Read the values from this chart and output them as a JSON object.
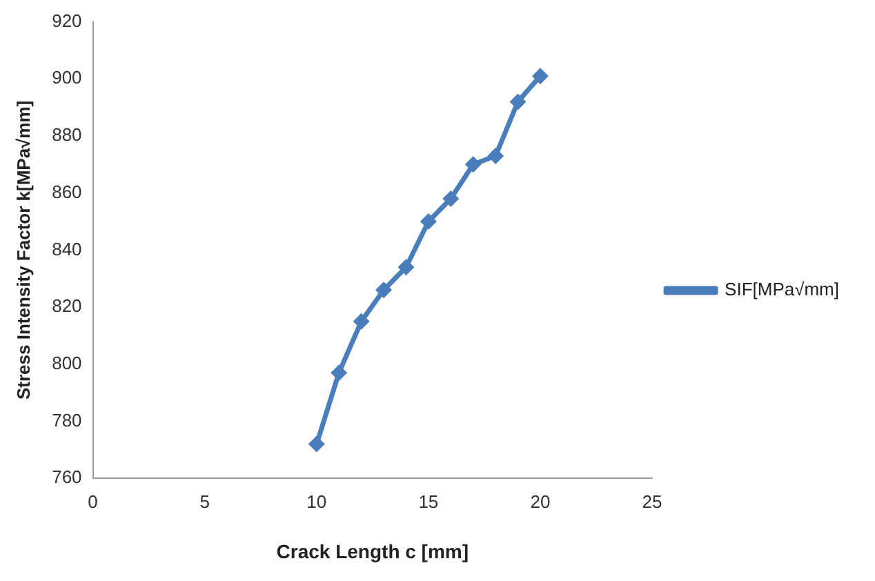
{
  "chart_data": {
    "type": "line",
    "xlabel": "Crack Length c [mm]",
    "ylabel": "Stress Intensity Factor k[MPa√mm]",
    "x": [
      10,
      11,
      12,
      13,
      14,
      15,
      16,
      17,
      18,
      19,
      20
    ],
    "series": [
      {
        "name": "SIF[MPa√mm]",
        "color": "#4a7ebb",
        "values": [
          772,
          797,
          815,
          826,
          834,
          850,
          858,
          870,
          873,
          892,
          901
        ]
      }
    ],
    "xlim": [
      0,
      25
    ],
    "xticks": [
      0,
      5,
      10,
      15,
      20,
      25
    ],
    "ylim": [
      760,
      920
    ],
    "yticks": [
      760,
      780,
      800,
      820,
      840,
      860,
      880,
      900,
      920
    ],
    "grid": false,
    "legend": "right",
    "marker": "diamond",
    "line_style": "solid"
  }
}
